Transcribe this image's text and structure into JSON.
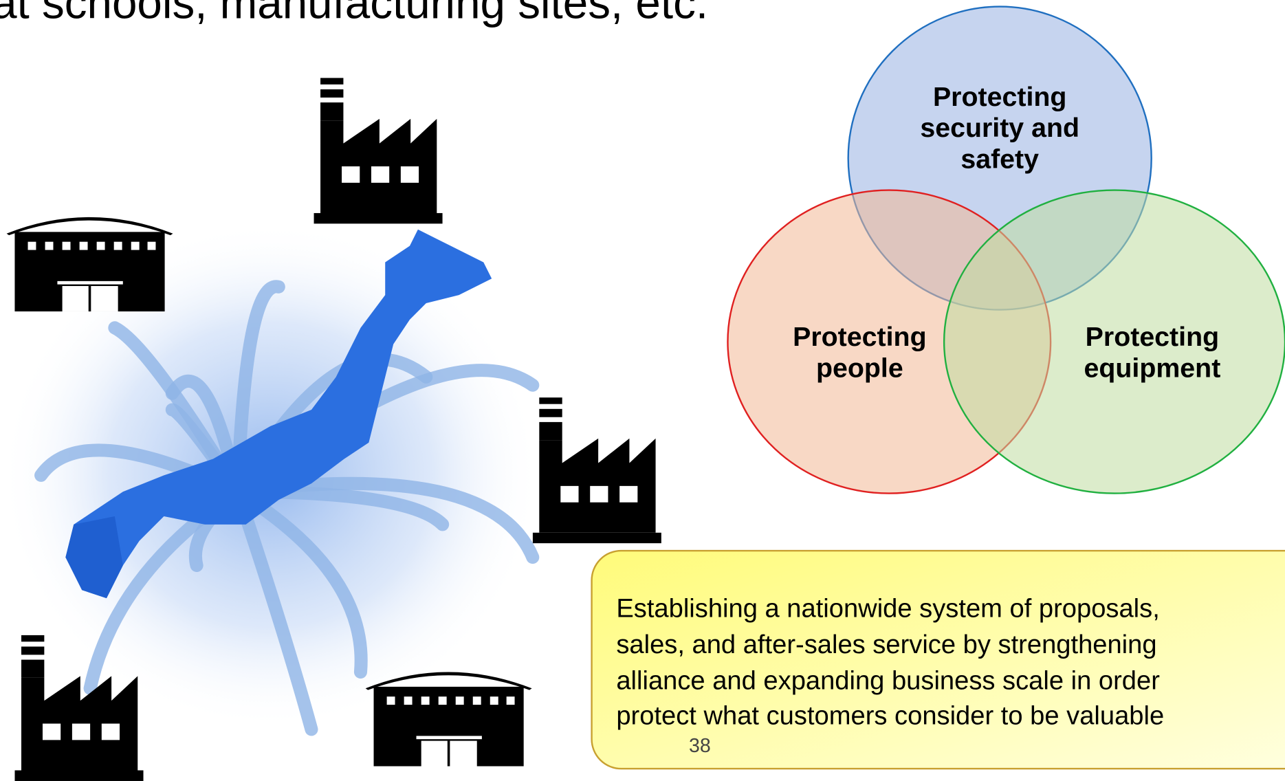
{
  "header": {
    "title": "at schools, manufacturing sites, etc."
  },
  "venn": [
    {
      "label": [
        "Protecting",
        "security and",
        "safety"
      ]
    },
    {
      "label": [
        "Protecting",
        "people"
      ]
    },
    {
      "label": [
        "Protecting",
        "equipment"
      ]
    }
  ],
  "callout": {
    "lines": [
      "Establishing a nationwide system of proposals,",
      "sales, and after-sales service by strengthening",
      "alliance and expanding business scale in order",
      "protect what customers consider to be valuable"
    ]
  },
  "page_number": "38"
}
